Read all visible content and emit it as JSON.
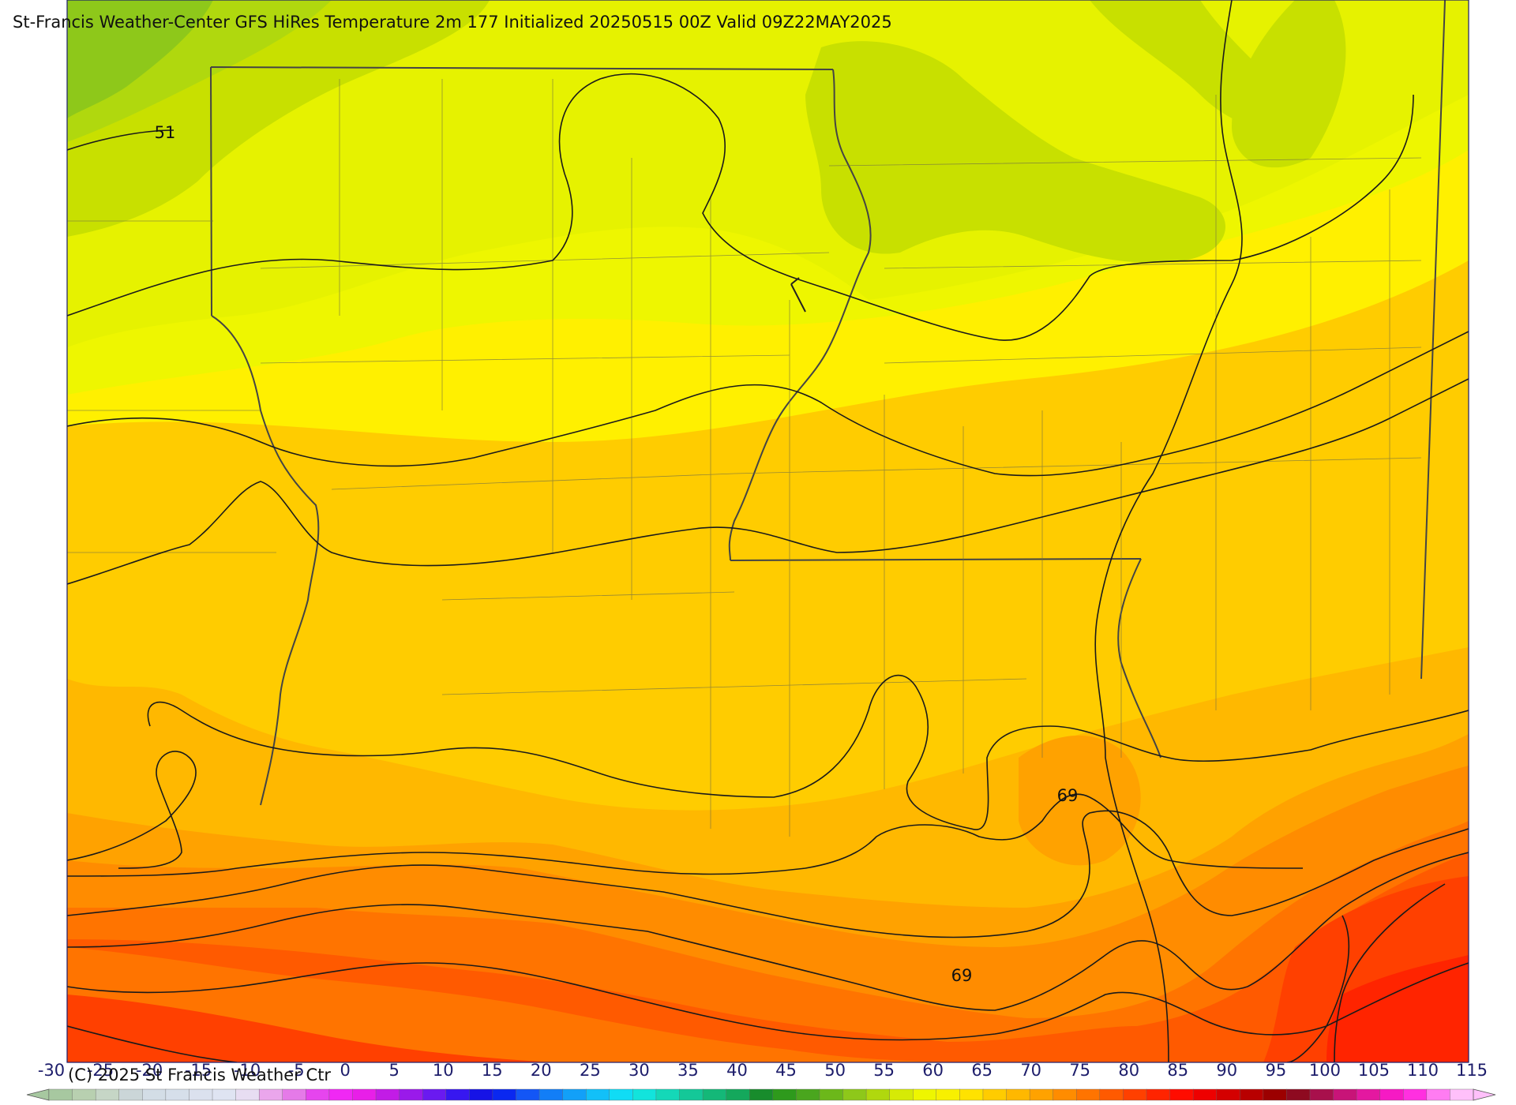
{
  "title": "St-Francis Weather-Center GFS HiRes Temperature 2m  177 Initialized 20250515 00Z Valid 09Z22MAY2025",
  "copyright": "(C) 2025 St Francis Weather Ctr",
  "contour_labels": [
    "51",
    "69",
    "69"
  ],
  "colorbar": {
    "ticks": [
      "-30",
      "-25",
      "-20",
      "-15",
      "-10",
      "-5",
      "0",
      "5",
      "10",
      "15",
      "20",
      "25",
      "30",
      "35",
      "40",
      "45",
      "50",
      "55",
      "60",
      "65",
      "70",
      "75",
      "80",
      "85",
      "90",
      "95",
      "100",
      "105",
      "110",
      "115"
    ],
    "colors": [
      "#a7c8a0",
      "#b8d0b0",
      "#c6d6c6",
      "#cbd6d8",
      "#d3dde6",
      "#d6dfea",
      "#dbe1ee",
      "#dfe4f2",
      "#e7ddf2",
      "#eaa6ec",
      "#e57ae8",
      "#e645ee",
      "#f028f4",
      "#e81fe8",
      "#c21ce6",
      "#9a1aea",
      "#6a1af0",
      "#3717f0",
      "#1613e6",
      "#0a28f0",
      "#1356f6",
      "#127ef7",
      "#12a0f8",
      "#12c0f8",
      "#10dcf5",
      "#12e4dc",
      "#14d8b8",
      "#14c898",
      "#14b878",
      "#14a85c",
      "#188c2c",
      "#2e9a1c",
      "#4aa61e",
      "#6cb81a",
      "#8ec81a",
      "#b0d80e",
      "#d6ea06",
      "#eef600",
      "#f8f000",
      "#ffe200",
      "#ffcc00",
      "#ffb800",
      "#ffa200",
      "#ff8c00",
      "#ff7400",
      "#ff5a00",
      "#ff4000",
      "#ff2400",
      "#ff0c00",
      "#ee0000",
      "#d40000",
      "#b80000",
      "#9c0000",
      "#8e0a20",
      "#a8104c",
      "#c81478",
      "#e418a0",
      "#f61ac4",
      "#ff30e0",
      "#ff7cf2",
      "#ffc0fa"
    ]
  }
}
